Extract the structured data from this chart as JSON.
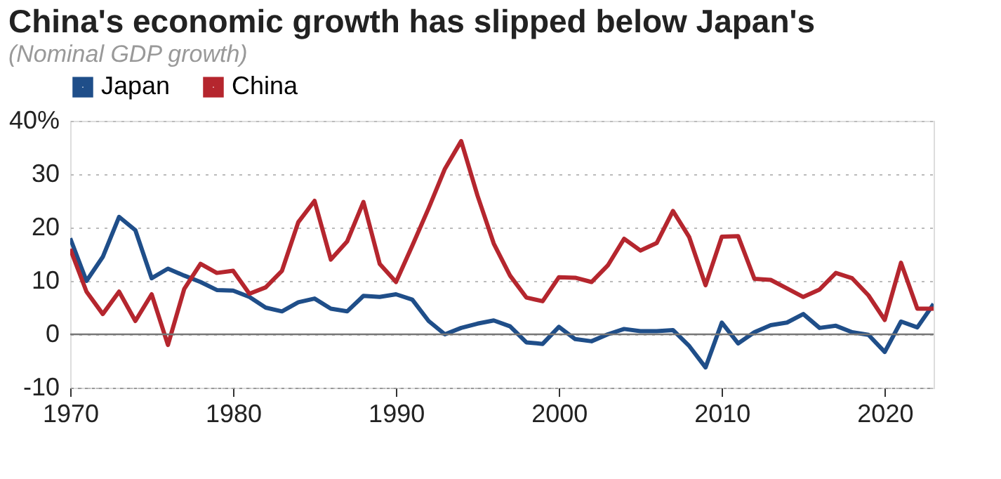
{
  "chart_data": {
    "type": "line",
    "title": "China's economic growth has slipped below Japan's",
    "subtitle": "(Nominal GDP growth)",
    "x": [
      1970,
      1971,
      1972,
      1973,
      1974,
      1975,
      1976,
      1977,
      1978,
      1979,
      1980,
      1981,
      1982,
      1983,
      1984,
      1985,
      1986,
      1987,
      1988,
      1989,
      1990,
      1991,
      1992,
      1993,
      1994,
      1995,
      1996,
      1997,
      1998,
      1999,
      2000,
      2001,
      2002,
      2003,
      2004,
      2005,
      2006,
      2007,
      2008,
      2009,
      2010,
      2011,
      2012,
      2013,
      2014,
      2015,
      2016,
      2017,
      2018,
      2019,
      2020,
      2021,
      2022,
      2023
    ],
    "series": [
      {
        "name": "Japan",
        "color": "#1f4e89",
        "values": [
          18,
          10,
          14.5,
          22,
          19.5,
          10.5,
          12.3,
          11,
          9.8,
          8.3,
          8.2,
          7,
          5,
          4.3,
          6,
          6.7,
          4.8,
          4.3,
          7.2,
          7,
          7.5,
          6.5,
          2.5,
          0,
          1.2,
          2,
          2.6,
          1.5,
          -1.5,
          -1.8,
          1.4,
          -0.9,
          -1.3,
          0,
          1,
          0.6,
          0.6,
          0.8,
          -2.2,
          -6.2,
          2.2,
          -1.7,
          0.4,
          1.7,
          2.2,
          3.8,
          1.2,
          1.6,
          0.4,
          -0.1,
          -3.3,
          2.4,
          1.3,
          5.7
        ]
      },
      {
        "name": "China",
        "color": "#b5262e",
        "values": [
          16,
          8,
          3.8,
          8,
          2.5,
          7.5,
          -2,
          8.5,
          13.2,
          11.5,
          11.9,
          7.6,
          8.8,
          11.9,
          21,
          25,
          14,
          17.4,
          24.8,
          13.2,
          9.8,
          16.6,
          23.6,
          31,
          36.2,
          26,
          17,
          11,
          6.9,
          6.2,
          10.7,
          10.6,
          9.8,
          12.9,
          17.9,
          15.7,
          17.1,
          23.1,
          18.2,
          9.2,
          18.3,
          18.4,
          10.4,
          10.2,
          8.6,
          7,
          8.4,
          11.5,
          10.5,
          7.3,
          2.7,
          13.4,
          4.8,
          4.8
        ]
      }
    ],
    "xlim": [
      1970,
      2023
    ],
    "xticks": [
      1970,
      1980,
      1990,
      2000,
      2010,
      2020
    ],
    "ylim": [
      -10,
      40
    ],
    "yticks": [
      -10,
      0,
      10,
      20,
      {
        "value": 40,
        "label": "40%"
      },
      30
    ],
    "ref_lines": [
      {
        "axis": "y",
        "value": 0,
        "color": "#777777"
      }
    ],
    "grid": "y",
    "legend": "top left",
    "marker": "none",
    "line_style": "solid"
  }
}
